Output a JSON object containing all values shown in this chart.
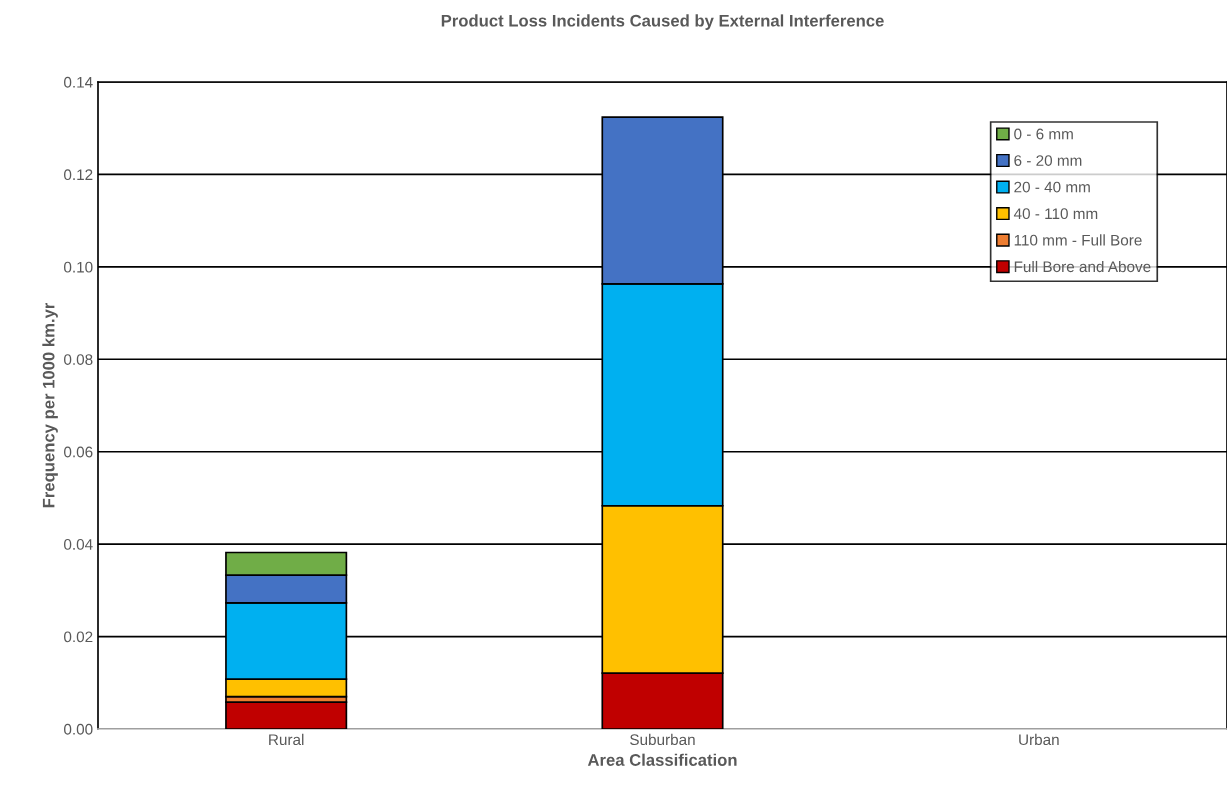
{
  "chart_data": {
    "type": "bar",
    "stacked": true,
    "title": "Product Loss Incidents Caused by External Interference",
    "xlabel": "Area Classification",
    "ylabel": "Frequency per 1000 km.yr",
    "categories": [
      "Rural",
      "Suburban",
      "Urban"
    ],
    "series": [
      {
        "name": "Full Bore and Above",
        "color": "#c00000",
        "values": [
          0.0058,
          0.0121,
          0
        ]
      },
      {
        "name": "110 mm - Full Bore",
        "color": "#ed7d31",
        "values": [
          0.0012,
          0,
          0
        ]
      },
      {
        "name": "40 - 110 mm",
        "color": "#ffc000",
        "values": [
          0.0038,
          0.0362,
          0
        ]
      },
      {
        "name": "20 - 40 mm",
        "color": "#00b0f0",
        "values": [
          0.0165,
          0.048,
          0
        ]
      },
      {
        "name": "6 - 20 mm",
        "color": "#4472c4",
        "values": [
          0.006,
          0.0361,
          0
        ]
      },
      {
        "name": "0 - 6 mm",
        "color": "#70ad47",
        "values": [
          0.0049,
          0,
          0
        ]
      }
    ],
    "ylim": [
      0,
      0.14
    ],
    "yticks": [
      {
        "value": 0,
        "label": "0.00"
      },
      {
        "value": 0.02,
        "label": "0.02"
      },
      {
        "value": 0.04,
        "label": "0.04"
      },
      {
        "value": 0.06,
        "label": "0.06"
      },
      {
        "value": 0.08,
        "label": "0.08"
      },
      {
        "value": 0.1,
        "label": "0.10"
      },
      {
        "value": 0.12,
        "label": "0.12"
      },
      {
        "value": 0.14,
        "label": "0.14"
      }
    ],
    "grid": "y",
    "legend": "top right"
  }
}
